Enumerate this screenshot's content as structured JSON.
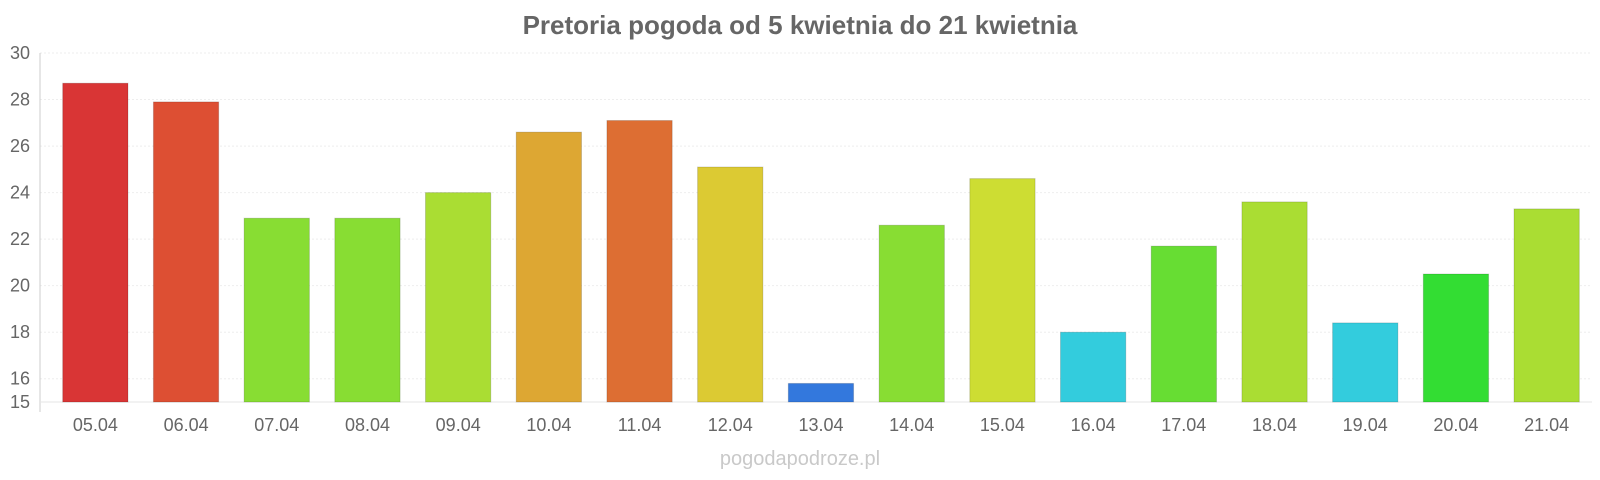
{
  "chart_data": {
    "type": "bar",
    "title": "Pretoria pogoda od 5 kwietnia do 21 kwietnia",
    "xlabel": "",
    "ylabel": "",
    "categories": [
      "05.04",
      "06.04",
      "07.04",
      "08.04",
      "09.04",
      "10.04",
      "11.04",
      "12.04",
      "13.04",
      "14.04",
      "15.04",
      "16.04",
      "17.04",
      "18.04",
      "19.04",
      "20.04",
      "21.04"
    ],
    "values": [
      28.7,
      27.9,
      22.9,
      22.9,
      24.0,
      26.6,
      27.1,
      25.1,
      15.8,
      22.6,
      24.6,
      18.0,
      21.7,
      23.6,
      18.4,
      20.5,
      23.3
    ],
    "colors": [
      "#d93535",
      "#dd4f33",
      "#88dd33",
      "#88dd33",
      "#aadd33",
      "#dda733",
      "#dd6e33",
      "#dcca33",
      "#3378dd",
      "#88dd33",
      "#cddd33",
      "#33ccdd",
      "#67dd33",
      "#aadd33",
      "#33ccdd",
      "#33dd33",
      "#aadd33"
    ],
    "ylim": [
      15,
      30
    ],
    "yticks": [
      15,
      16,
      18,
      20,
      22,
      24,
      26,
      28,
      30
    ],
    "grid": true,
    "legend": "none"
  },
  "watermark": "pogodapodroze.pl"
}
